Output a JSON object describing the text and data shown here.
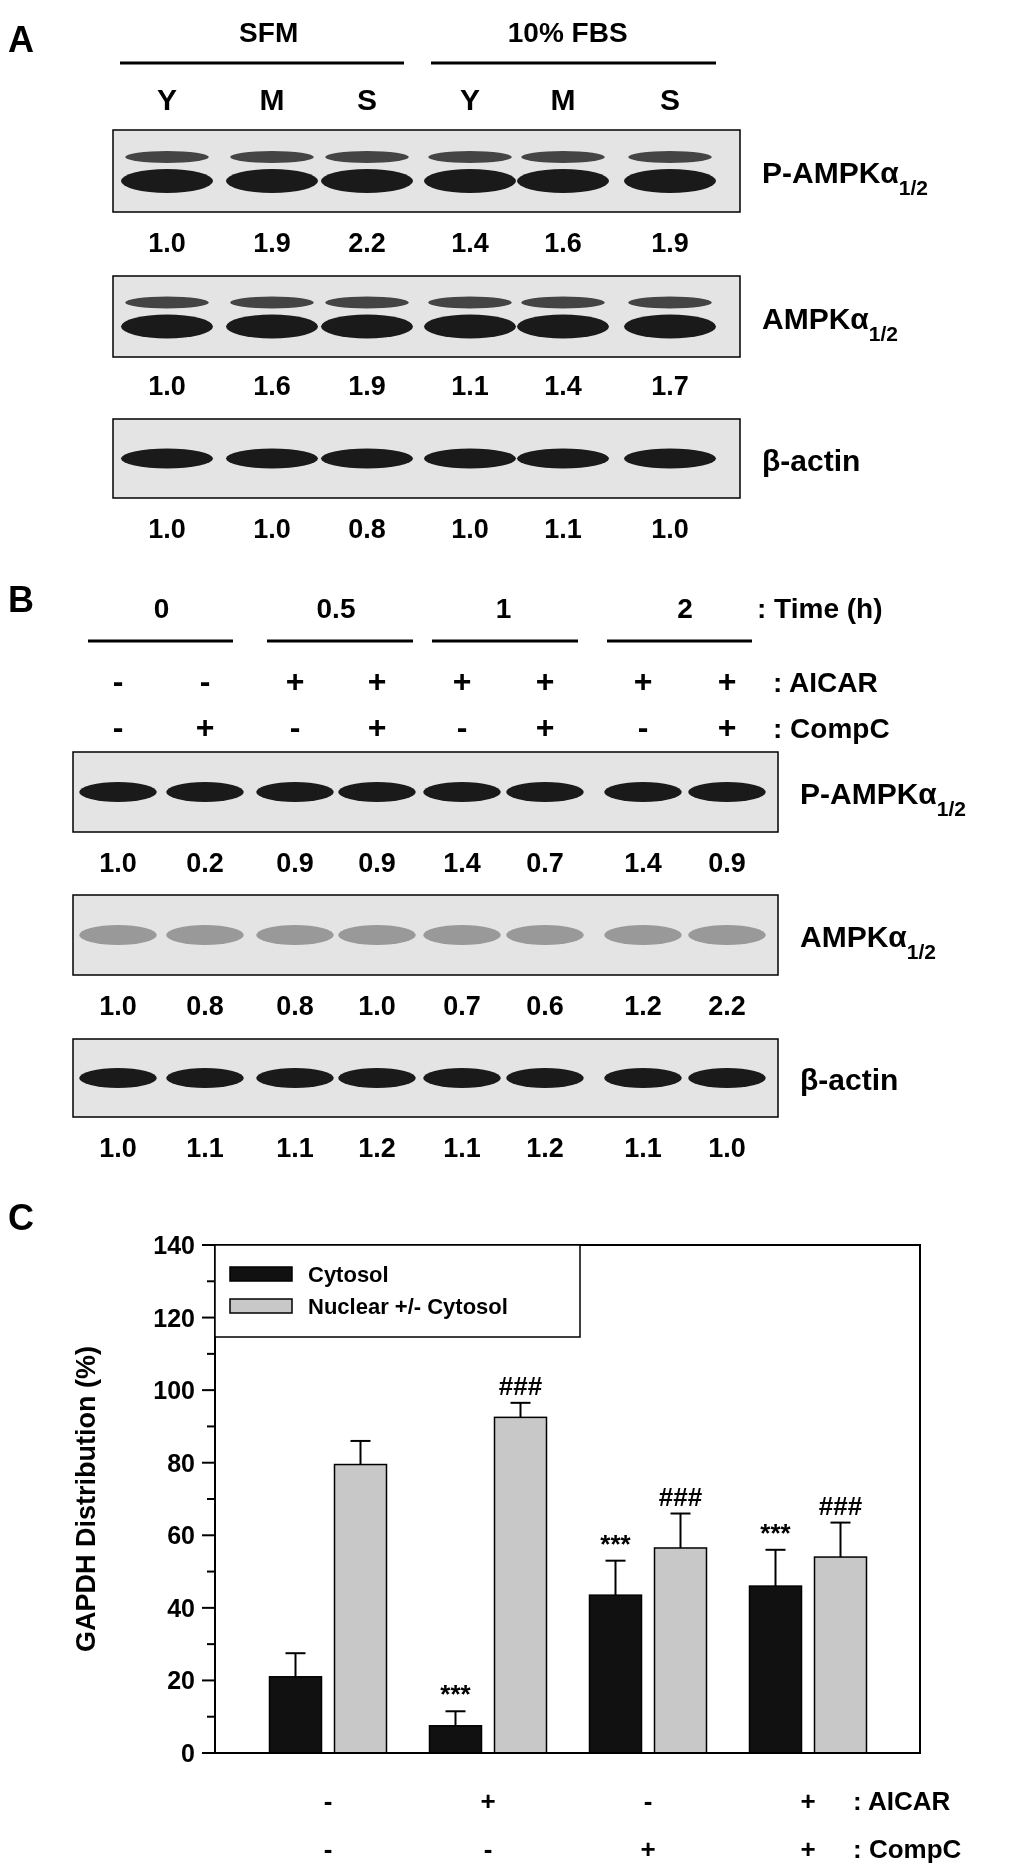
{
  "chart_data": [
    {
      "type": "other",
      "title": "A",
      "categories": [
        "Y",
        "M",
        "S",
        "Y",
        "M",
        "S"
      ],
      "series": [
        {
          "name": "P-AMPKα$_{1/2}$",
          "values": [
            1.0,
            1.9,
            2.2,
            1.4,
            1.6,
            1.9
          ],
          "value_labels": [
            "1.0",
            "1.9",
            "2.2",
            "1.4",
            "1.6",
            "1.9"
          ]
        },
        {
          "name": "AMPKα$_{1/2}$",
          "values": [
            1.0,
            1.6,
            1.9,
            1.1,
            1.4,
            1.7
          ],
          "value_labels": [
            "1.0",
            "1.6",
            "1.9",
            "1.1",
            "1.4",
            "1.7"
          ]
        },
        {
          "name": "β-actin",
          "values": [
            1.0,
            1.0,
            0.8,
            1.0,
            1.1,
            1.0
          ],
          "value_labels": [
            "1.0",
            "1.0",
            "0.8",
            "1.0",
            "1.1",
            "1.0"
          ]
        }
      ],
      "annotations": [
        "SFM",
        "10% FBS"
      ]
    },
    {
      "type": "other",
      "title": "B",
      "categories": [
        "-",
        "+",
        "-",
        "+",
        "-",
        "+",
        "-",
        "+"
      ],
      "series": [
        {
          "name": "P-AMPKα$_{1/2}$",
          "values": [
            1.0,
            0.2,
            0.9,
            0.9,
            1.4,
            0.7,
            1.4,
            0.9
          ],
          "value_labels": [
            "1.0",
            "0.2",
            "0.9",
            "0.9",
            "1.4",
            "0.7",
            "1.4",
            "0.9"
          ]
        },
        {
          "name": "AMPKα$_{1/2}$",
          "values": [
            1.0,
            0.8,
            0.8,
            1.0,
            0.7,
            0.6,
            1.2,
            2.2
          ],
          "value_labels": [
            "1.0",
            "0.8",
            "0.8",
            "1.0",
            "0.7",
            "0.6",
            "1.2",
            "2.2"
          ]
        },
        {
          "name": "β-actin",
          "values": [
            1.0,
            1.1,
            1.1,
            1.2,
            1.1,
            1.2,
            1.1,
            1.0
          ],
          "value_labels": [
            "1.0",
            "1.1",
            "1.1",
            "1.2",
            "1.1",
            "1.2",
            "1.1",
            "1.0"
          ]
        }
      ],
      "annotations": [
        "0",
        "0.5",
        "1",
        "2",
        ": Time (h)",
        "-",
        "-",
        "+",
        "+",
        "+",
        "+",
        "+",
        "+",
        ": AICAR",
        ": CompC"
      ]
    },
    {
      "type": "bar",
      "title": "C",
      "ylabel": "GAPDH Distribution (%)",
      "categories": [
        null,
        null,
        null,
        null
      ],
      "series": [
        {
          "name": "Cytosol",
          "color": "#111111",
          "values": [
            21,
            7.5,
            43.5,
            46
          ],
          "errors": [
            6.5,
            4,
            9.5,
            10
          ],
          "value_labels": [
            null,
            "***",
            "***",
            "***"
          ]
        },
        {
          "name": "Nuclear +/- Cytosol",
          "color": "#c8c8c8",
          "values": [
            79.5,
            92.5,
            56.5,
            54
          ],
          "errors": [
            6.5,
            4,
            9.5,
            9.5
          ],
          "value_labels": [
            null,
            "###",
            "###",
            "###"
          ]
        }
      ],
      "ylim": [
        0,
        140
      ],
      "yticks": [
        0,
        {
          "value": 10,
          "label": null
        },
        20,
        {
          "value": 30,
          "label": null
        },
        40,
        {
          "value": 50,
          "label": null
        },
        60,
        {
          "value": 70,
          "label": null
        },
        80,
        {
          "value": 90,
          "label": null
        },
        100,
        {
          "value": 110,
          "label": null
        },
        120,
        {
          "value": 130,
          "label": null
        },
        140
      ],
      "grid": false,
      "legend": "top left",
      "annotations": [
        "-",
        "+",
        "-",
        "+",
        ": AICAR",
        "-",
        "-",
        "+",
        "+",
        ": CompC"
      ]
    }
  ]
}
